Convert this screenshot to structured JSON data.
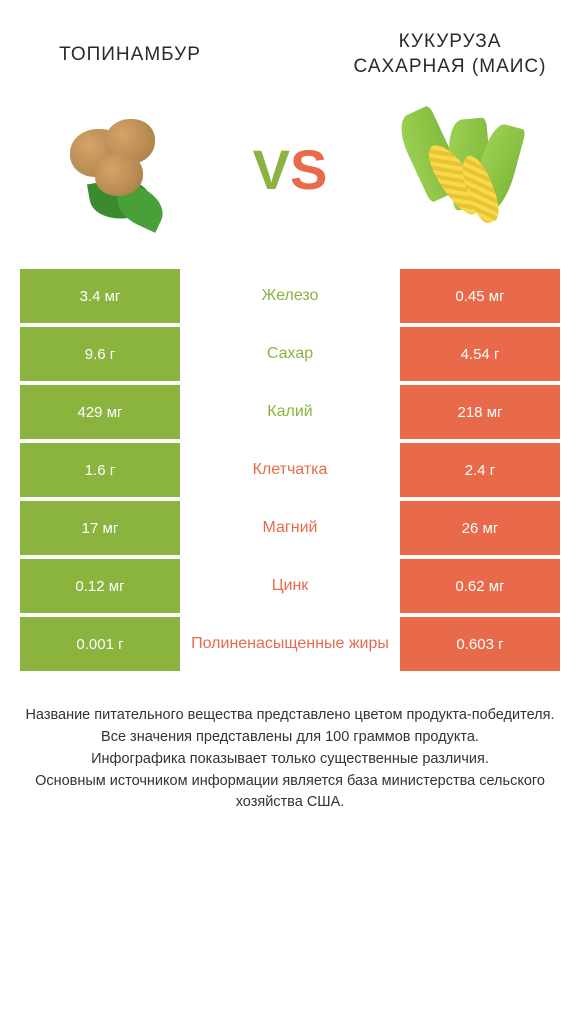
{
  "header": {
    "left_title": "ТОПИНАМБУР",
    "right_title": "КУКУРУЗА САХАРНАЯ (МАИС)"
  },
  "vs": {
    "v": "V",
    "s": "S"
  },
  "colors": {
    "green": "#8bb43f",
    "orange": "#e96a4a",
    "background": "#ffffff",
    "text": "#333333"
  },
  "table": {
    "type": "comparison-table",
    "left_color": "#8bb43f",
    "right_color": "#e96a4a",
    "rows": [
      {
        "left": "3.4 мг",
        "label": "Железо",
        "right": "0.45 мг",
        "winner": "left"
      },
      {
        "left": "9.6 г",
        "label": "Сахар",
        "right": "4.54 г",
        "winner": "left"
      },
      {
        "left": "429 мг",
        "label": "Калий",
        "right": "218 мг",
        "winner": "left"
      },
      {
        "left": "1.6 г",
        "label": "Клетчатка",
        "right": "2.4 г",
        "winner": "right"
      },
      {
        "left": "17 мг",
        "label": "Магний",
        "right": "26 мг",
        "winner": "right"
      },
      {
        "left": "0.12 мг",
        "label": "Цинк",
        "right": "0.62 мг",
        "winner": "right"
      },
      {
        "left": "0.001 г",
        "label": "Полиненасыщенные жиры",
        "right": "0.603 г",
        "winner": "right"
      }
    ]
  },
  "footer": {
    "lines": [
      "Название питательного вещества представлено цветом продукта-победителя.",
      "Все значения представлены для 100 граммов продукта.",
      "Инфографика показывает только существенные различия.",
      "Основным источником информации является база министерства сельского хозяйства США."
    ]
  }
}
